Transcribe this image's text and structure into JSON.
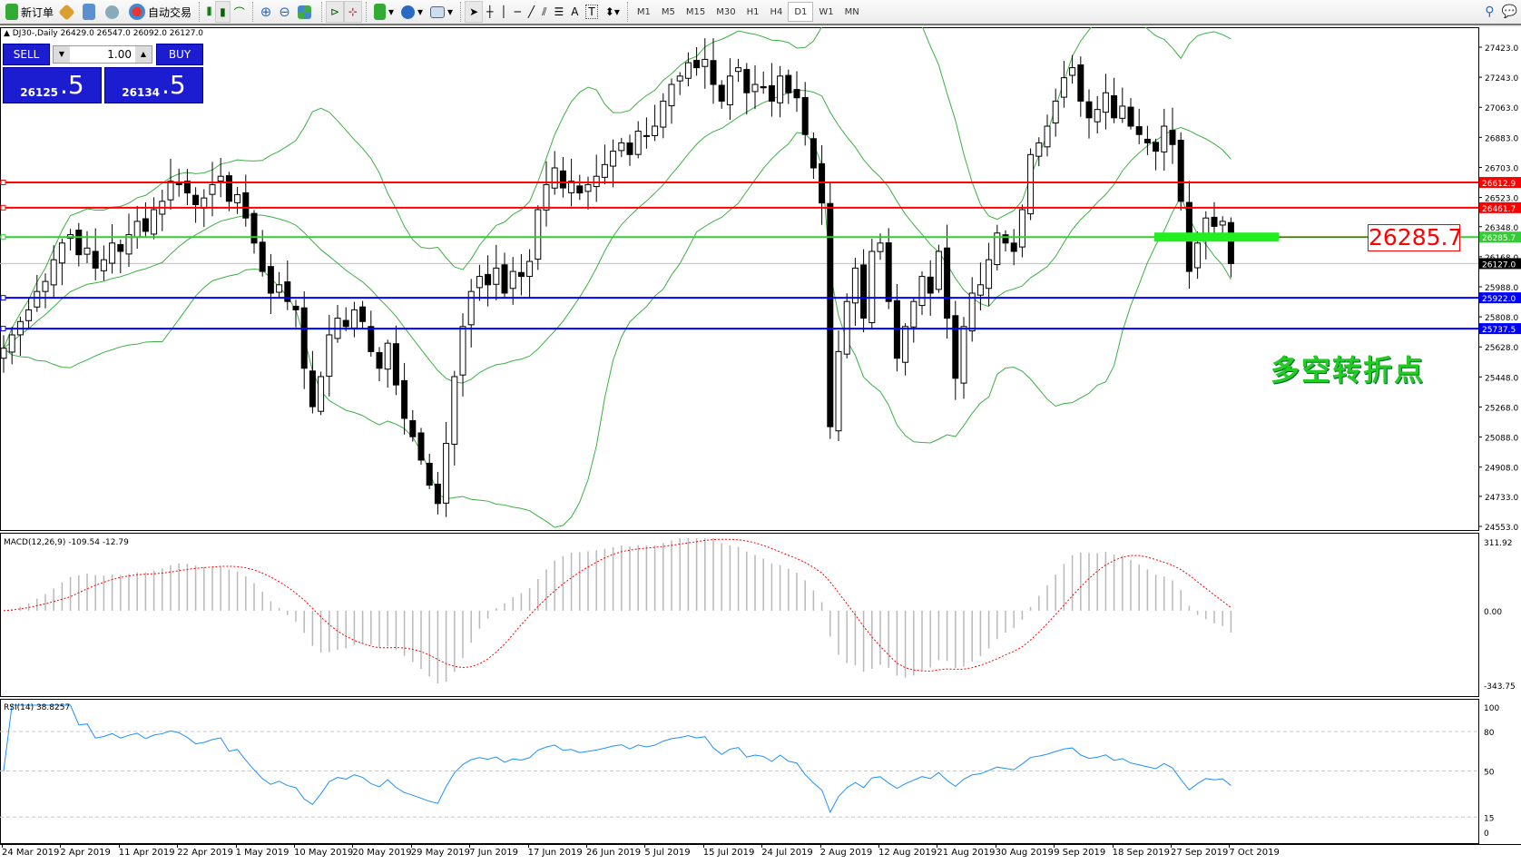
{
  "toolbar": {
    "new_order": "新订单",
    "auto_trading": "自动交易",
    "icons": [
      "new-order-icon",
      "market-watch-icon",
      "navigator-icon",
      "signals-icon",
      "auto-trading-icon",
      "bar-chart-icon",
      "candlestick-icon",
      "line-chart-icon",
      "zoom-in-icon",
      "zoom-out-icon",
      "tile-windows-icon",
      "autoscroll-icon",
      "chart-shift-icon",
      "indicators-icon",
      "periods-icon",
      "templates-icon",
      "cursor-icon",
      "crosshair-icon",
      "vertical-line-icon",
      "horizontal-line-icon",
      "trendline-icon",
      "fibonacci-icon",
      "fibo-fan-icon",
      "text-icon",
      "text-label-icon",
      "arrows-icon",
      "search-icon",
      "chat-icon"
    ],
    "timeframes": [
      "M1",
      "M5",
      "M15",
      "M30",
      "H1",
      "H4",
      "D1",
      "W1",
      "MN"
    ],
    "active_timeframe": "D1"
  },
  "chart": {
    "symbol_info": "DJ30-,Daily  26429.0 26547.0 26092.0 26127.0",
    "trade_panel": {
      "sell": "SELL",
      "buy": "BUY",
      "lots": "1.00",
      "sell_price_main": "26125",
      "sell_price_frac": ".5",
      "buy_price_main": "26134",
      "buy_price_frac": ".5"
    },
    "price_axis": [
      "27423.0",
      "27243.0",
      "27063.0",
      "26883.0",
      "26703.0",
      "26523.0",
      "26348.0",
      "26168.0",
      "25988.0",
      "25808.0",
      "25628.0",
      "25448.0",
      "25268.0",
      "25088.0",
      "24908.0",
      "24733.0",
      "24553.0"
    ],
    "levels": [
      {
        "price": 26612.9,
        "label": "26612.9",
        "color": "#ff0000"
      },
      {
        "price": 26461.7,
        "label": "26461.7",
        "color": "#ff0000"
      },
      {
        "price": 26285.7,
        "label": "26285.7",
        "color": "#32cd32"
      },
      {
        "price": 25922.0,
        "label": "25922.0",
        "color": "#0000ff"
      },
      {
        "price": 25737.5,
        "label": "25737.5",
        "color": "#0000ff"
      }
    ],
    "current_price": {
      "price": 26127.0,
      "label": "26127.0"
    },
    "annotation_price": "26285.7",
    "annotation_text": "多空转折点",
    "closes": [
      25620,
      25700,
      25780,
      25850,
      25960,
      26020,
      26150,
      26250,
      26300,
      26180,
      26220,
      26100,
      26150,
      26250,
      26200,
      26300,
      26380,
      26320,
      26450,
      26500,
      26620,
      26600,
      26550,
      26480,
      26520,
      26600,
      26650,
      26500,
      26540,
      26400,
      26250,
      26080,
      25950,
      26000,
      25900,
      25850,
      25500,
      25270,
      25450,
      25700,
      25800,
      25750,
      25850,
      25780,
      25600,
      25500,
      25650,
      25400,
      25200,
      25090,
      24950,
      24800,
      24690,
      25050,
      25450,
      25750,
      25960,
      26050,
      26000,
      26100,
      25950,
      26080,
      26050,
      26140,
      26450,
      26600,
      26700,
      26580,
      26620,
      26550,
      26600,
      26650,
      26720,
      26800,
      26850,
      26780,
      26920,
      26890,
      26950,
      27100,
      27200,
      27250,
      27330,
      27300,
      27350,
      27200,
      27100,
      27250,
      27300,
      27150,
      27200,
      27180,
      27100,
      27250,
      27150,
      27120,
      26900,
      26700,
      26490,
      25150,
      25600,
      25900,
      26100,
      25800,
      26200,
      26250,
      25900,
      25560,
      25750,
      25900,
      26050,
      25950,
      26200,
      25800,
      25440,
      25750,
      25950,
      26000,
      26150,
      26310,
      26250,
      26200,
      26450,
      26780,
      26850,
      26950,
      27100,
      27240,
      27300,
      27100,
      27000,
      27050,
      27150,
      27000,
      27070,
      26950,
      26900,
      26850,
      26800,
      26950,
      26840,
      26500,
      26080,
      26250,
      26400,
      26350,
      26380,
      26127
    ]
  },
  "macd": {
    "label": "MACD(12,26,9) -109.54 -12.79",
    "axis": [
      "311.92",
      "0.00",
      "-343.75"
    ]
  },
  "rsi": {
    "label": "RSI(14) 38.8257",
    "axis": [
      "100",
      "80",
      "50",
      "15",
      "0"
    ]
  },
  "dates": [
    "24 Mar 2019",
    "2 Apr 2019",
    "11 Apr 2019",
    "22 Apr 2019",
    "1 May 2019",
    "10 May 2019",
    "20 May 2019",
    "29 May 2019",
    "7 Jun 2019",
    "17 Jun 2019",
    "26 Jun 2019",
    "5 Jul 2019",
    "15 Jul 2019",
    "24 Jul 2019",
    "2 Aug 2019",
    "12 Aug 2019",
    "21 Aug 2019",
    "30 Aug 2019",
    "9 Sep 2019",
    "18 Sep 2019",
    "27 Sep 2019",
    "7 Oct 2019"
  ]
}
